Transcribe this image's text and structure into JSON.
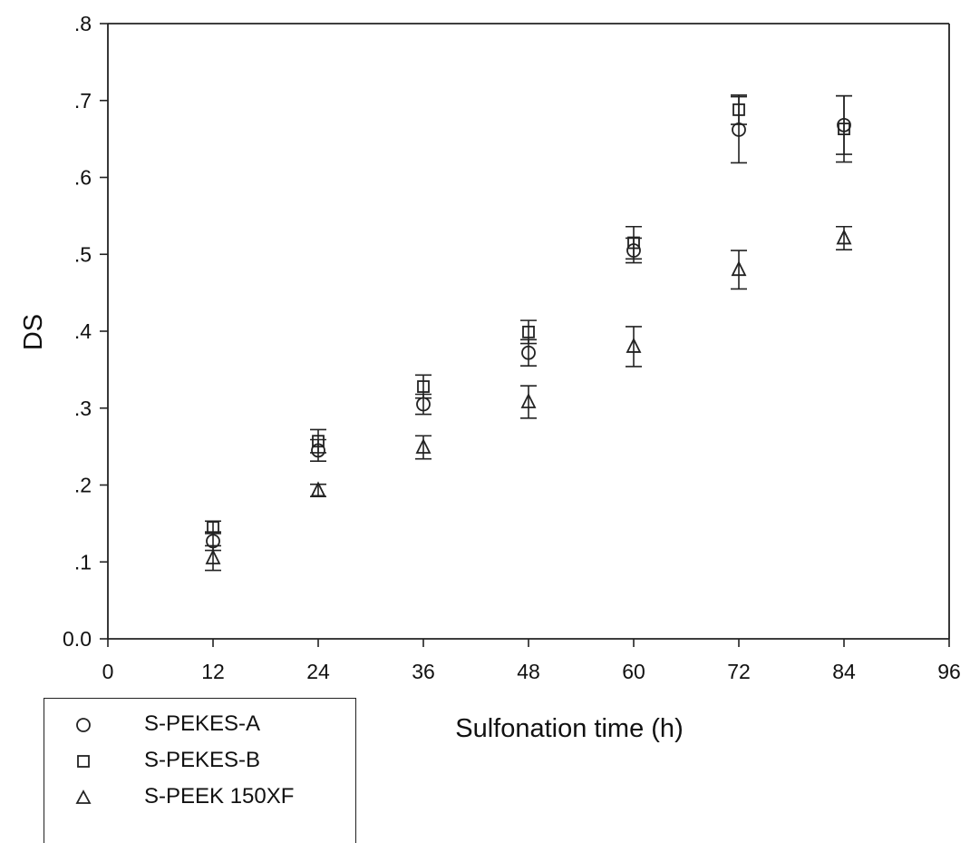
{
  "chart_data": {
    "type": "scatter",
    "xlabel": "Sulfonation time (h)",
    "ylabel": "DS",
    "xlim": [
      0,
      96
    ],
    "ylim": [
      0,
      0.8
    ],
    "x_ticks": [
      "0",
      "12",
      "24",
      "36",
      "48",
      "60",
      "72",
      "84",
      "96"
    ],
    "y_ticks": [
      "0.0",
      ".1",
      ".2",
      ".3",
      ".4",
      ".5",
      ".6",
      ".7",
      ".8"
    ],
    "grid": false,
    "legend_position": "bottom-left",
    "series": [
      {
        "name": "S-PEKES-A",
        "marker": "circle",
        "points": [
          {
            "x": 12,
            "y": 0.127,
            "err": 0.012
          },
          {
            "x": 24,
            "y": 0.245,
            "err": 0.014
          },
          {
            "x": 36,
            "y": 0.305,
            "err": 0.013
          },
          {
            "x": 48,
            "y": 0.372,
            "err": 0.017
          },
          {
            "x": 60,
            "y": 0.505,
            "err": 0.016
          },
          {
            "x": 72,
            "y": 0.662,
            "err": 0.043
          },
          {
            "x": 84,
            "y": 0.668,
            "err": 0.038
          }
        ]
      },
      {
        "name": "S-PEKES-B",
        "marker": "square",
        "points": [
          {
            "x": 12,
            "y": 0.145,
            "err": 0.008
          },
          {
            "x": 24,
            "y": 0.257,
            "err": 0.015
          },
          {
            "x": 36,
            "y": 0.328,
            "err": 0.015
          },
          {
            "x": 48,
            "y": 0.399,
            "err": 0.015
          },
          {
            "x": 60,
            "y": 0.515,
            "err": 0.021
          },
          {
            "x": 72,
            "y": 0.688,
            "err": 0.019
          },
          {
            "x": 84,
            "y": 0.663,
            "err": 0.043
          }
        ]
      },
      {
        "name": "S-PEEK 150XF",
        "marker": "triangle",
        "points": [
          {
            "x": 12,
            "y": 0.105,
            "err": 0.016
          },
          {
            "x": 24,
            "y": 0.193,
            "err": 0.008
          },
          {
            "x": 36,
            "y": 0.249,
            "err": 0.015
          },
          {
            "x": 48,
            "y": 0.308,
            "err": 0.021
          },
          {
            "x": 60,
            "y": 0.38,
            "err": 0.026
          },
          {
            "x": 72,
            "y": 0.48,
            "err": 0.025
          },
          {
            "x": 84,
            "y": 0.521,
            "err": 0.015
          }
        ]
      }
    ]
  }
}
